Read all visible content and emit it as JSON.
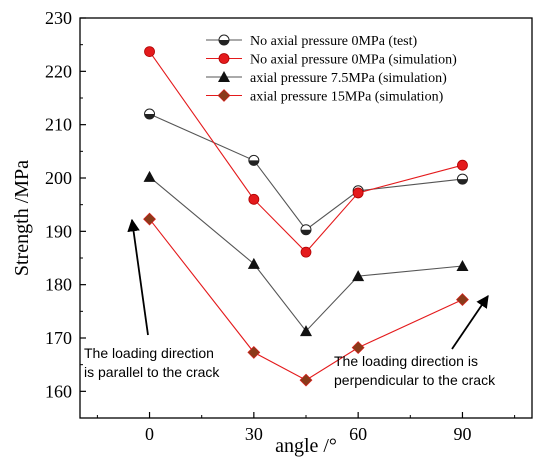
{
  "chart_data": {
    "type": "line",
    "xlabel": "angle /°",
    "ylabel": "Strength /MPa",
    "xlim": [
      -20,
      110
    ],
    "ylim": [
      155,
      230
    ],
    "xticks": [
      0,
      30,
      60,
      90
    ],
    "yticks": [
      160,
      170,
      180,
      190,
      200,
      210,
      220,
      230
    ],
    "x": [
      0,
      30,
      45,
      60,
      90
    ],
    "legend_position": "top-right",
    "grid": false,
    "series": [
      {
        "name": "No axial pressure 0MPa (test)",
        "values": [
          212,
          203.3,
          190.3,
          197.6,
          199.8
        ],
        "color": "#555555",
        "marker": "half-circle"
      },
      {
        "name": "No axial pressure 0MPa (simulation)",
        "values": [
          223.7,
          196,
          186.1,
          197.2,
          202.4
        ],
        "color": "#e41a1c",
        "marker": "circle"
      },
      {
        "name": "axial pressure 7.5MPa (simulation)",
        "values": [
          200.2,
          183.9,
          171.3,
          181.6,
          183.5
        ],
        "color": "#555555",
        "marker": "triangle"
      },
      {
        "name": "axial pressure 15MPa (simulation)",
        "values": [
          192.3,
          167.3,
          162.1,
          168.2,
          177.2
        ],
        "color": "#e41a1c",
        "marker": "diamond"
      }
    ],
    "annotations": [
      {
        "lines": [
          "The loading direction",
          "is parallel to the crack"
        ]
      },
      {
        "lines": [
          "The loading direction is",
          "perpendicular to the crack"
        ]
      }
    ]
  }
}
